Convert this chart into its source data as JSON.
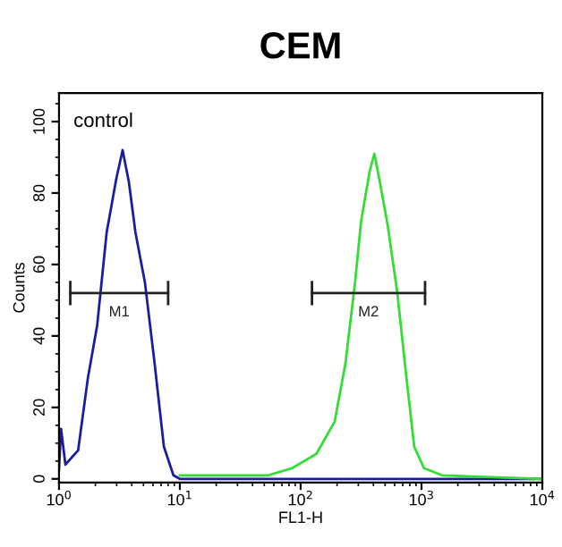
{
  "chart_data": {
    "type": "line",
    "title": "CEM",
    "xlabel": "FL1-H",
    "ylabel": "Counts",
    "log": "x",
    "grid": false,
    "xlim": [
      1,
      10000
    ],
    "xticks": [
      {
        "value": 1,
        "label": "10$^{0}$"
      },
      {
        "value": 10,
        "label": "10$^{1}$"
      },
      {
        "value": 100,
        "label": "10$^{2}$"
      },
      {
        "value": 1000,
        "label": "10$^{3}$"
      },
      {
        "value": 10000,
        "label": "10$^{4}$"
      }
    ],
    "ylim": [
      -1,
      108
    ],
    "yticks": [
      0,
      20,
      40,
      60,
      80,
      100
    ],
    "annotations": [
      "control"
    ],
    "series": [
      {
        "color": "#1c1ca0",
        "x": [
          1,
          1.04,
          1.13,
          1.44,
          1.73,
          2.07,
          2.48,
          2.98,
          3.36,
          3.79,
          4.29,
          5.14,
          6.15,
          7.38,
          8.85,
          10,
          100,
          10000
        ],
        "values": [
          2.5,
          14,
          4,
          8,
          28,
          43,
          69,
          84,
          92,
          83,
          69,
          55,
          33,
          9,
          1,
          0,
          0,
          0
        ]
      },
      {
        "color": "#33dd33",
        "x": [
          10,
          25,
          54,
          85,
          135,
          191,
          234,
          282,
          316,
          372,
          407,
          447,
          525,
          631,
          741,
          871,
          1047,
          1479,
          10000
        ],
        "values": [
          1,
          1,
          1,
          3,
          7,
          16,
          32,
          55,
          72,
          86,
          91,
          84,
          71,
          52,
          30,
          9,
          3,
          1,
          0
        ]
      },
      {
        "type": "line",
        "name": "M1",
        "color": "#222222",
        "x": [
          1.24,
          8.0
        ],
        "values": [
          52,
          52
        ]
      },
      {
        "type": "line",
        "name": "M2",
        "color": "#222222",
        "x": [
          124,
          1070
        ],
        "values": [
          52,
          52
        ]
      }
    ]
  }
}
